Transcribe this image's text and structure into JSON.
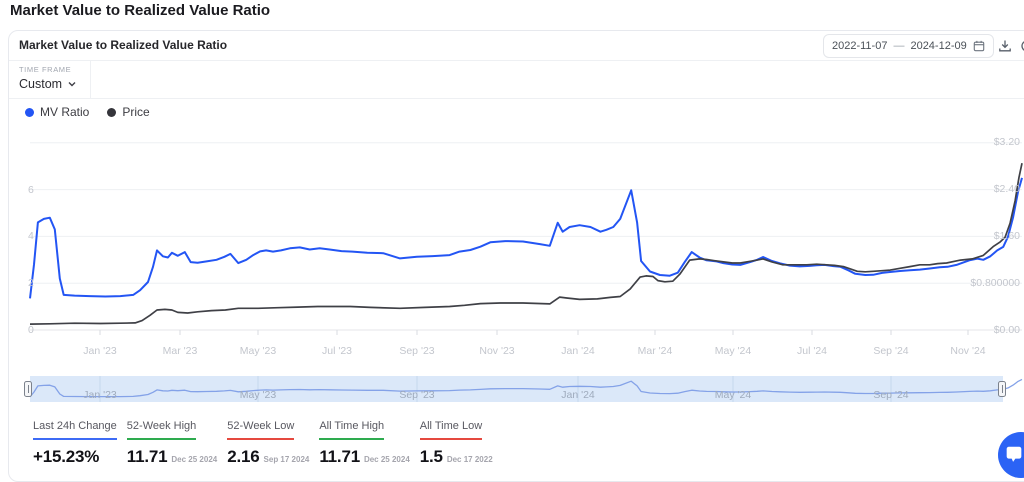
{
  "page": {
    "title": "Market Value to Realized Value Ratio"
  },
  "card": {
    "title": "Market Value to Realized Value Ratio",
    "timeframe": {
      "label": "TIME FRAME",
      "value": "Custom"
    },
    "date_range": {
      "start": "2022-11-07",
      "separator": "—",
      "end": "2024-12-09"
    }
  },
  "legend": {
    "items": [
      {
        "label": "MV Ratio",
        "color": "#2355f4"
      },
      {
        "label": "Price",
        "color": "#35353b"
      }
    ]
  },
  "stats": {
    "items": [
      {
        "label": "Last 24h Change",
        "value": "+15.23%",
        "date": "",
        "underline_color": "#3d6bf5"
      },
      {
        "label": "52-Week High",
        "value": "11.71",
        "date": "Dec 25 2024",
        "underline_color": "#2eab4f"
      },
      {
        "label": "52-Week Low",
        "value": "2.16",
        "date": "Sep 17 2024",
        "underline_color": "#e5493f"
      },
      {
        "label": "All Time High",
        "value": "11.71",
        "date": "Dec 25 2024",
        "underline_color": "#2eab4f"
      },
      {
        "label": "All Time Low",
        "value": "1.5",
        "date": "Dec 17 2022",
        "underline_color": "#e5493f"
      }
    ]
  },
  "icons": {
    "calendar": "calendar-icon",
    "download": "download-icon",
    "chevron": "chevron-down-icon",
    "chat": "chat-bubble-icon"
  },
  "colors": {
    "accent_blue": "#2355f4",
    "price_dark": "#3f4046",
    "green": "#2eab4f",
    "red": "#e5493f",
    "brush_bg": "#dbe8f9",
    "grid": "#eef0f3"
  },
  "chart_data": {
    "type": "line",
    "title": "Market Value to Realized Value Ratio",
    "x_range": [
      "2022-11-07",
      "2024-12-09"
    ],
    "x_ticks": [
      "Jan '23",
      "Mar '23",
      "May '23",
      "Jul '23",
      "Sep '23",
      "Nov '23",
      "Jan '24",
      "Mar '24",
      "May '24",
      "Jul '24",
      "Sep '24",
      "Nov '24"
    ],
    "brush_labels": [
      "Jan '23",
      "May '23",
      "Sep '23",
      "Jan '24",
      "May '24",
      "Sep '24"
    ],
    "grid": true,
    "legend_position": "top-left",
    "left_axis": {
      "ticks": [
        0,
        2,
        4,
        6
      ],
      "grid_values": [
        0,
        2,
        4,
        6,
        8
      ],
      "min": 0,
      "max": 8
    },
    "right_axis": {
      "tick_labels": [
        "$0.00",
        "$0.800000",
        "$1.60",
        "$2.40",
        "$3.20"
      ],
      "tick_values": [
        0,
        0.8,
        1.6,
        2.4,
        3.2
      ],
      "min": 0,
      "max": 3.2
    },
    "series": [
      {
        "name": "MV Ratio",
        "axis": "left",
        "color": "#2355f4",
        "points": [
          [
            0,
            1.35
          ],
          [
            0.004,
            2.8
          ],
          [
            0.008,
            4.6
          ],
          [
            0.014,
            4.75
          ],
          [
            0.02,
            4.8
          ],
          [
            0.025,
            4.3
          ],
          [
            0.03,
            2.2
          ],
          [
            0.034,
            1.5
          ],
          [
            0.045,
            1.47
          ],
          [
            0.06,
            1.45
          ],
          [
            0.076,
            1.43
          ],
          [
            0.091,
            1.45
          ],
          [
            0.104,
            1.5
          ],
          [
            0.111,
            1.7
          ],
          [
            0.119,
            2.05
          ],
          [
            0.124,
            2.7
          ],
          [
            0.128,
            3.4
          ],
          [
            0.134,
            3.15
          ],
          [
            0.139,
            3.1
          ],
          [
            0.143,
            3.3
          ],
          [
            0.149,
            3.17
          ],
          [
            0.156,
            3.33
          ],
          [
            0.162,
            2.9
          ],
          [
            0.169,
            2.87
          ],
          [
            0.178,
            2.93
          ],
          [
            0.188,
            3.0
          ],
          [
            0.196,
            3.13
          ],
          [
            0.202,
            3.25
          ],
          [
            0.21,
            2.86
          ],
          [
            0.218,
            3.0
          ],
          [
            0.225,
            3.2
          ],
          [
            0.232,
            3.36
          ],
          [
            0.238,
            3.4
          ],
          [
            0.245,
            3.35
          ],
          [
            0.253,
            3.4
          ],
          [
            0.262,
            3.49
          ],
          [
            0.272,
            3.53
          ],
          [
            0.282,
            3.44
          ],
          [
            0.292,
            3.49
          ],
          [
            0.302,
            3.44
          ],
          [
            0.314,
            3.37
          ],
          [
            0.325,
            3.35
          ],
          [
            0.34,
            3.3
          ],
          [
            0.356,
            3.28
          ],
          [
            0.373,
            3.06
          ],
          [
            0.39,
            3.13
          ],
          [
            0.406,
            3.16
          ],
          [
            0.423,
            3.2
          ],
          [
            0.433,
            3.35
          ],
          [
            0.444,
            3.42
          ],
          [
            0.454,
            3.56
          ],
          [
            0.464,
            3.75
          ],
          [
            0.479,
            3.8
          ],
          [
            0.497,
            3.78
          ],
          [
            0.514,
            3.67
          ],
          [
            0.524,
            3.6
          ],
          [
            0.532,
            4.58
          ],
          [
            0.537,
            4.2
          ],
          [
            0.544,
            4.4
          ],
          [
            0.554,
            4.48
          ],
          [
            0.565,
            4.4
          ],
          [
            0.575,
            4.2
          ],
          [
            0.581,
            4.28
          ],
          [
            0.588,
            4.4
          ],
          [
            0.595,
            4.75
          ],
          [
            0.606,
            5.97
          ],
          [
            0.612,
            4.6
          ],
          [
            0.616,
            2.95
          ],
          [
            0.625,
            2.5
          ],
          [
            0.635,
            2.35
          ],
          [
            0.645,
            2.32
          ],
          [
            0.653,
            2.45
          ],
          [
            0.66,
            2.9
          ],
          [
            0.667,
            3.33
          ],
          [
            0.675,
            3.1
          ],
          [
            0.682,
            2.98
          ],
          [
            0.692,
            2.93
          ],
          [
            0.699,
            2.86
          ],
          [
            0.708,
            2.8
          ],
          [
            0.716,
            2.78
          ],
          [
            0.726,
            2.9
          ],
          [
            0.733,
            3.0
          ],
          [
            0.739,
            3.12
          ],
          [
            0.748,
            2.95
          ],
          [
            0.756,
            2.85
          ],
          [
            0.766,
            2.75
          ],
          [
            0.776,
            2.72
          ],
          [
            0.786,
            2.74
          ],
          [
            0.793,
            2.77
          ],
          [
            0.801,
            2.78
          ],
          [
            0.81,
            2.73
          ],
          [
            0.817,
            2.7
          ],
          [
            0.825,
            2.55
          ],
          [
            0.832,
            2.4
          ],
          [
            0.842,
            2.35
          ],
          [
            0.85,
            2.36
          ],
          [
            0.859,
            2.44
          ],
          [
            0.867,
            2.48
          ],
          [
            0.877,
            2.52
          ],
          [
            0.887,
            2.55
          ],
          [
            0.897,
            2.58
          ],
          [
            0.907,
            2.63
          ],
          [
            0.917,
            2.68
          ],
          [
            0.925,
            2.7
          ],
          [
            0.934,
            2.78
          ],
          [
            0.942,
            2.9
          ],
          [
            0.947,
            2.98
          ],
          [
            0.955,
            3.05
          ],
          [
            0.961,
            3.0
          ],
          [
            0.968,
            3.15
          ],
          [
            0.975,
            3.4
          ],
          [
            0.981,
            3.55
          ],
          [
            0.986,
            4.0
          ],
          [
            0.991,
            4.82
          ],
          [
            0.996,
            5.9
          ],
          [
            1,
            6.5
          ]
        ]
      },
      {
        "name": "Price",
        "axis": "right",
        "color": "#3f4046",
        "points": [
          [
            0,
            0.1
          ],
          [
            0.02,
            0.105
          ],
          [
            0.045,
            0.115
          ],
          [
            0.071,
            0.11
          ],
          [
            0.091,
            0.115
          ],
          [
            0.106,
            0.12
          ],
          [
            0.113,
            0.16
          ],
          [
            0.121,
            0.25
          ],
          [
            0.128,
            0.34
          ],
          [
            0.136,
            0.35
          ],
          [
            0.143,
            0.34
          ],
          [
            0.149,
            0.3
          ],
          [
            0.159,
            0.29
          ],
          [
            0.169,
            0.31
          ],
          [
            0.183,
            0.33
          ],
          [
            0.197,
            0.34
          ],
          [
            0.21,
            0.37
          ],
          [
            0.23,
            0.37
          ],
          [
            0.25,
            0.38
          ],
          [
            0.27,
            0.39
          ],
          [
            0.29,
            0.4
          ],
          [
            0.31,
            0.4
          ],
          [
            0.323,
            0.4
          ],
          [
            0.343,
            0.385
          ],
          [
            0.373,
            0.37
          ],
          [
            0.398,
            0.385
          ],
          [
            0.423,
            0.4
          ],
          [
            0.438,
            0.42
          ],
          [
            0.454,
            0.45
          ],
          [
            0.474,
            0.46
          ],
          [
            0.497,
            0.46
          ],
          [
            0.524,
            0.445
          ],
          [
            0.534,
            0.56
          ],
          [
            0.541,
            0.545
          ],
          [
            0.554,
            0.52
          ],
          [
            0.572,
            0.53
          ],
          [
            0.585,
            0.555
          ],
          [
            0.595,
            0.57
          ],
          [
            0.605,
            0.7
          ],
          [
            0.615,
            0.9
          ],
          [
            0.621,
            0.92
          ],
          [
            0.628,
            0.91
          ],
          [
            0.633,
            0.84
          ],
          [
            0.64,
            0.82
          ],
          [
            0.648,
            0.83
          ],
          [
            0.655,
            0.95
          ],
          [
            0.665,
            1.19
          ],
          [
            0.675,
            1.21
          ],
          [
            0.682,
            1.2
          ],
          [
            0.69,
            1.18
          ],
          [
            0.699,
            1.16
          ],
          [
            0.708,
            1.14
          ],
          [
            0.716,
            1.14
          ],
          [
            0.726,
            1.17
          ],
          [
            0.733,
            1.19
          ],
          [
            0.739,
            1.21
          ],
          [
            0.748,
            1.16
          ],
          [
            0.759,
            1.11
          ],
          [
            0.771,
            1.11
          ],
          [
            0.783,
            1.11
          ],
          [
            0.793,
            1.12
          ],
          [
            0.803,
            1.11
          ],
          [
            0.811,
            1.1
          ],
          [
            0.82,
            1.08
          ],
          [
            0.827,
            1.04
          ],
          [
            0.834,
            1.0
          ],
          [
            0.842,
            0.99
          ],
          [
            0.85,
            1.0
          ],
          [
            0.859,
            1.01
          ],
          [
            0.867,
            1.02
          ],
          [
            0.877,
            1.05
          ],
          [
            0.887,
            1.08
          ],
          [
            0.897,
            1.11
          ],
          [
            0.907,
            1.11
          ],
          [
            0.915,
            1.13
          ],
          [
            0.924,
            1.14
          ],
          [
            0.932,
            1.17
          ],
          [
            0.938,
            1.19
          ],
          [
            0.944,
            1.2
          ],
          [
            0.95,
            1.21
          ],
          [
            0.961,
            1.27
          ],
          [
            0.971,
            1.42
          ],
          [
            0.978,
            1.5
          ],
          [
            0.983,
            1.58
          ],
          [
            0.988,
            1.82
          ],
          [
            0.993,
            2.2
          ],
          [
            0.997,
            2.6
          ],
          [
            1,
            2.84
          ]
        ]
      }
    ]
  }
}
